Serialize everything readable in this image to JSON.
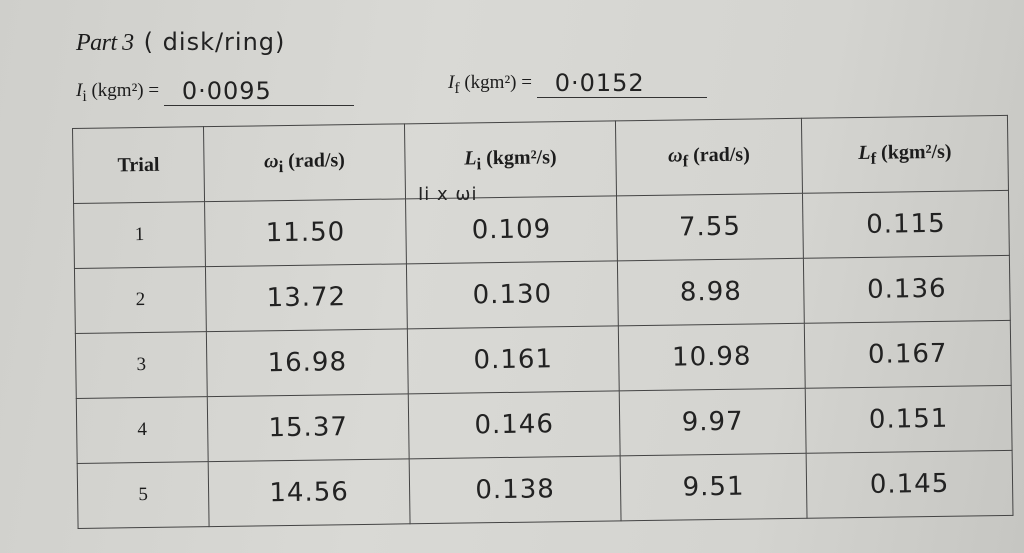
{
  "title": {
    "part": "Part 3",
    "handwritten": "( disk/ring)"
  },
  "inertia_initial": {
    "label_symbol": "I",
    "label_sub": "i",
    "label_unit": " (kgm²) =",
    "value": "0·0095"
  },
  "inertia_final": {
    "label_symbol": "I",
    "label_sub": "f",
    "label_unit": " (kgm²) =",
    "value": "0·0152"
  },
  "note": "Ii x ωi",
  "table": {
    "headers": [
      {
        "sym": "",
        "sub": "",
        "unit": "Trial"
      },
      {
        "sym": "ω",
        "sub": "i",
        "unit": " (rad/s)"
      },
      {
        "sym": "L",
        "sub": "i",
        "unit": " (kgm²/s)"
      },
      {
        "sym": "ω",
        "sub": "f",
        "unit": " (rad/s)"
      },
      {
        "sym": "L",
        "sub": "f",
        "unit": " (kgm²/s)"
      }
    ],
    "rows": [
      [
        "1",
        "11.50",
        "0.109",
        "7.55",
        "0.115"
      ],
      [
        "2",
        "13.72",
        "0.130",
        "8.98",
        "0.136"
      ],
      [
        "3",
        "16.98",
        "0.161",
        "10.98",
        "0.167"
      ],
      [
        "4",
        "15.37",
        "0.146",
        "9.97",
        "0.151"
      ],
      [
        "5",
        "14.56",
        "0.138",
        "9.51",
        "0.145"
      ]
    ]
  }
}
